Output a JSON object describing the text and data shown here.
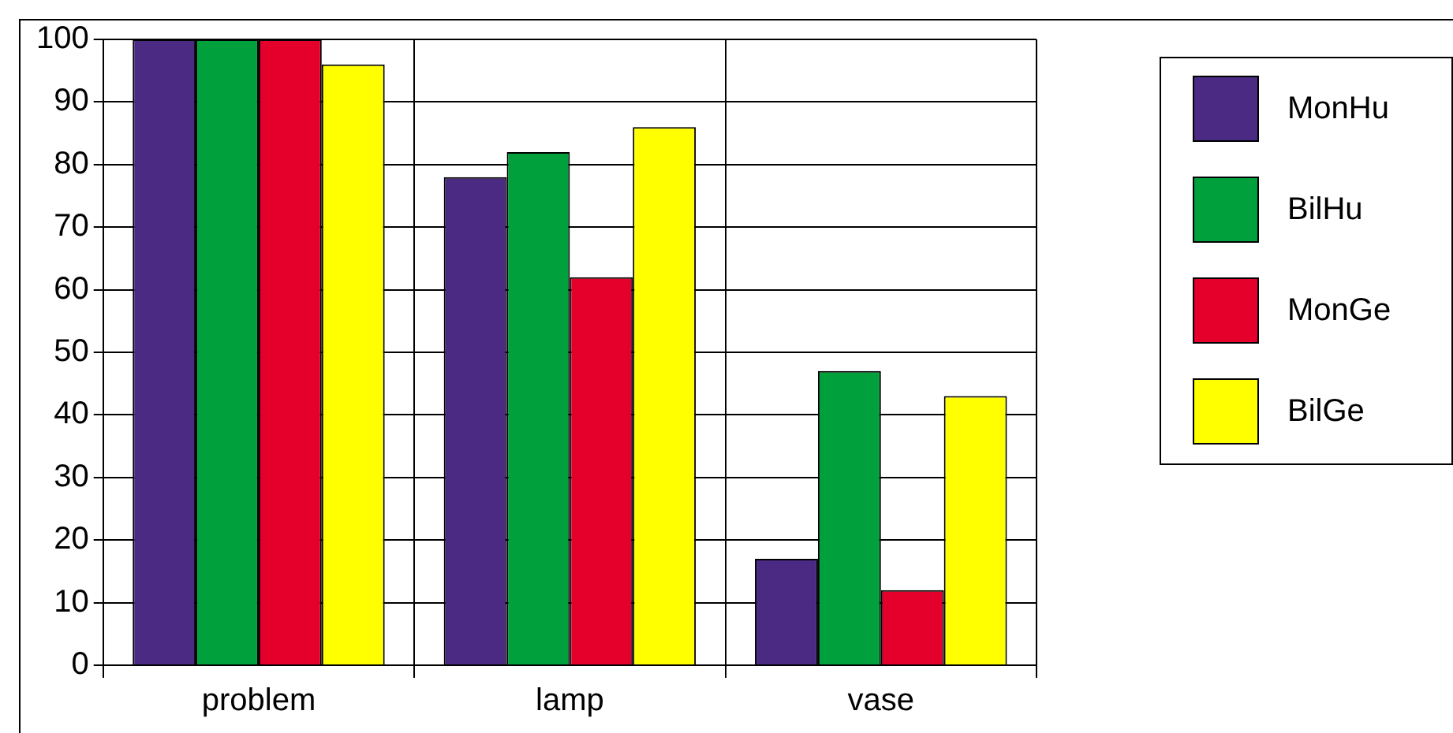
{
  "chart_data": {
    "type": "bar",
    "categories": [
      "problem",
      "lamp",
      "vase"
    ],
    "series": [
      {
        "name": "MonHu",
        "color": "#4b2a84",
        "values": [
          100,
          78,
          17
        ]
      },
      {
        "name": "BilHu",
        "color": "#00a03c",
        "values": [
          100,
          82,
          47
        ]
      },
      {
        "name": "MonGe",
        "color": "#e4002b",
        "values": [
          100,
          62,
          12
        ]
      },
      {
        "name": "BilGe",
        "color": "#ffff00",
        "values": [
          96,
          86,
          43
        ]
      }
    ],
    "ylim": [
      0,
      100
    ],
    "yticks": [
      0,
      10,
      20,
      30,
      40,
      50,
      60,
      70,
      80,
      90,
      100
    ],
    "grid": true,
    "legend": "top right"
  }
}
